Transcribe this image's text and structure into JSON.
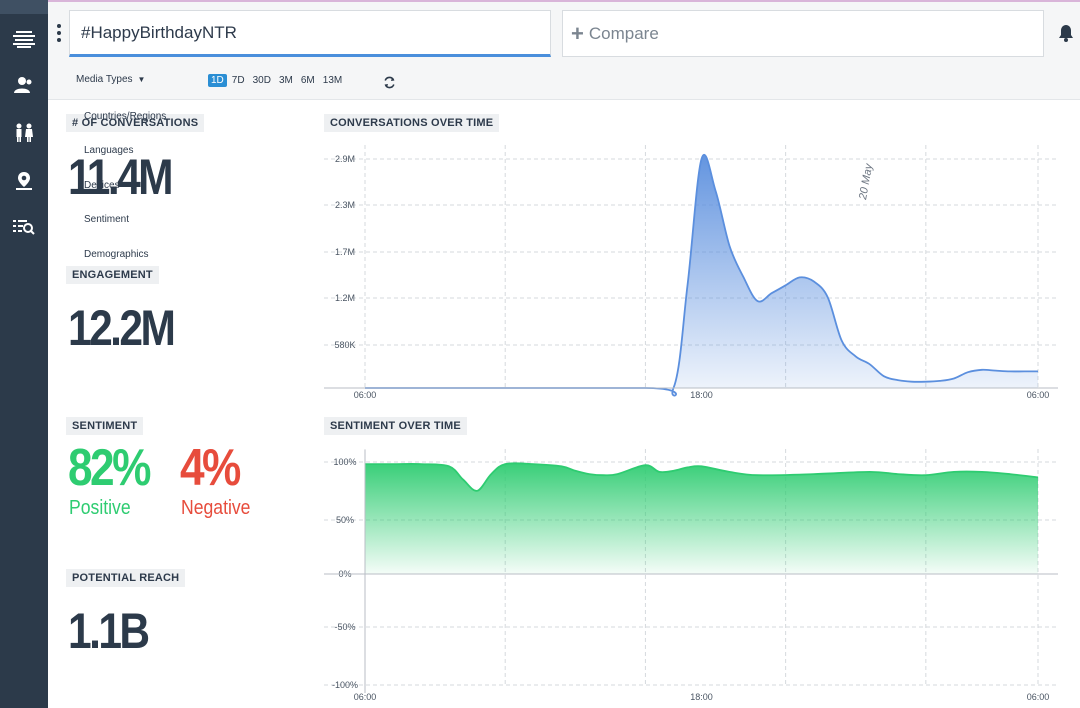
{
  "search": {
    "value": "#HappyBirthdayNTR"
  },
  "compare": {
    "label": "Compare"
  },
  "filters": {
    "media_types": "Media Types"
  },
  "ranges": [
    {
      "label": "1D",
      "active": true
    },
    {
      "label": "7D",
      "active": false
    },
    {
      "label": "30D",
      "active": false
    },
    {
      "label": "3M",
      "active": false
    },
    {
      "label": "6M",
      "active": false
    },
    {
      "label": "13M",
      "active": false
    }
  ],
  "dropdown": [
    "Countries/Regions",
    "Languages",
    "Devices",
    "Sentiment",
    "Demographics"
  ],
  "sidebar": {
    "icons": [
      "logo-icon",
      "user-icon",
      "demographics-icon",
      "location-icon",
      "search-list-icon"
    ]
  },
  "metrics": {
    "conversations": {
      "label": "# OF CONVERSATIONS",
      "value": "11.4M"
    },
    "engagement": {
      "label": "ENGAGEMENT",
      "value": "12.2M"
    },
    "sentiment": {
      "label": "SENTIMENT",
      "positive_value": "82%",
      "positive_label": "Positive",
      "negative_value": "4%",
      "negative_label": "Negative"
    },
    "reach": {
      "label": "POTENTIAL REACH",
      "value": "1.1B"
    }
  },
  "colors": {
    "accent": "#2a8ed4",
    "positive": "#2ecc71",
    "negative": "#e74c3c",
    "sidebar": "#2c3a4a",
    "conv_line": "#5b8fde"
  },
  "chart_data": [
    {
      "type": "area",
      "title": "CONVERSATIONS OVER TIME",
      "x_ticks": [
        "06:00",
        "18:00",
        "06:00"
      ],
      "y_ticks": [
        "580K",
        "1.2M",
        "1.7M",
        "2.3M",
        "2.9M"
      ],
      "annotation": "20 May",
      "ylim": [
        0,
        2900000
      ],
      "grid": true,
      "x_hours": [
        0,
        10,
        11,
        11.5,
        12,
        12.5,
        13,
        13.5,
        14,
        14.5,
        15,
        15.5,
        16,
        16.5,
        17,
        17.5,
        18,
        18.5,
        19,
        19.5,
        20,
        20.5,
        21,
        21.5,
        22,
        22.5,
        23,
        23.5,
        24
      ],
      "values": [
        0,
        0,
        0,
        1300000,
        2900000,
        2500000,
        1800000,
        1400000,
        1100000,
        1200000,
        1300000,
        1400000,
        1350000,
        1150000,
        600000,
        400000,
        300000,
        150000,
        100000,
        80000,
        80000,
        90000,
        120000,
        200000,
        230000,
        220000,
        210000,
        210000,
        210000
      ]
    },
    {
      "type": "area",
      "title": "SENTIMENT OVER TIME",
      "x_ticks": [
        "06:00",
        "18:00",
        "06:00"
      ],
      "y_ticks": [
        "100%",
        "50%",
        "0%",
        "-50%",
        "-100%"
      ],
      "ylim": [
        -100,
        100
      ],
      "grid": true,
      "x_hours": [
        0,
        1,
        2,
        3,
        3.5,
        4,
        4.5,
        5,
        6,
        7,
        7.5,
        8,
        8.5,
        9,
        10,
        10.5,
        11,
        11.5,
        12,
        13,
        14,
        16,
        18,
        19,
        20,
        21,
        22,
        23,
        24
      ],
      "values": [
        99,
        99,
        99,
        97,
        85,
        75,
        90,
        99,
        99,
        97,
        93,
        90,
        89,
        90,
        98,
        92,
        93,
        96,
        97,
        92,
        89,
        90,
        92,
        90,
        89,
        92,
        92,
        90,
        87
      ]
    }
  ]
}
